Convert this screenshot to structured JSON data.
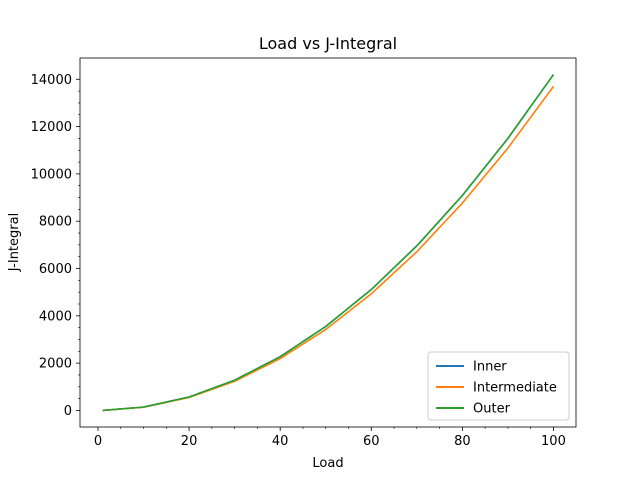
{
  "chart_data": {
    "type": "line",
    "title": "Load vs J-Integral",
    "xlabel": "Load",
    "ylabel": "J-Integral",
    "xlim": [
      -3.95,
      104.95
    ],
    "ylim": [
      -700,
      14900
    ],
    "xticks": [
      0,
      20,
      40,
      60,
      80,
      100
    ],
    "yticks": [
      0,
      2000,
      4000,
      6000,
      8000,
      10000,
      12000,
      14000
    ],
    "grid": false,
    "legend_position": "lower-right",
    "x": [
      1,
      10,
      20,
      30,
      40,
      50,
      60,
      70,
      80,
      90,
      100
    ],
    "series": [
      {
        "name": "Inner",
        "color": "#1f77b4",
        "values": [
          1.4,
          142,
          568,
          1278,
          2272,
          3550,
          5112,
          6958,
          9088,
          11502,
          14200
        ]
      },
      {
        "name": "Intermediate",
        "color": "#ff7f0e",
        "values": [
          1.4,
          137,
          548,
          1233,
          2192,
          3425,
          4932,
          6713,
          8768,
          11097,
          13700
        ]
      },
      {
        "name": "Outer",
        "color": "#2ca02c",
        "values": [
          1.4,
          142,
          568,
          1278,
          2272,
          3550,
          5112,
          6958,
          9088,
          11502,
          14200
        ]
      }
    ]
  }
}
